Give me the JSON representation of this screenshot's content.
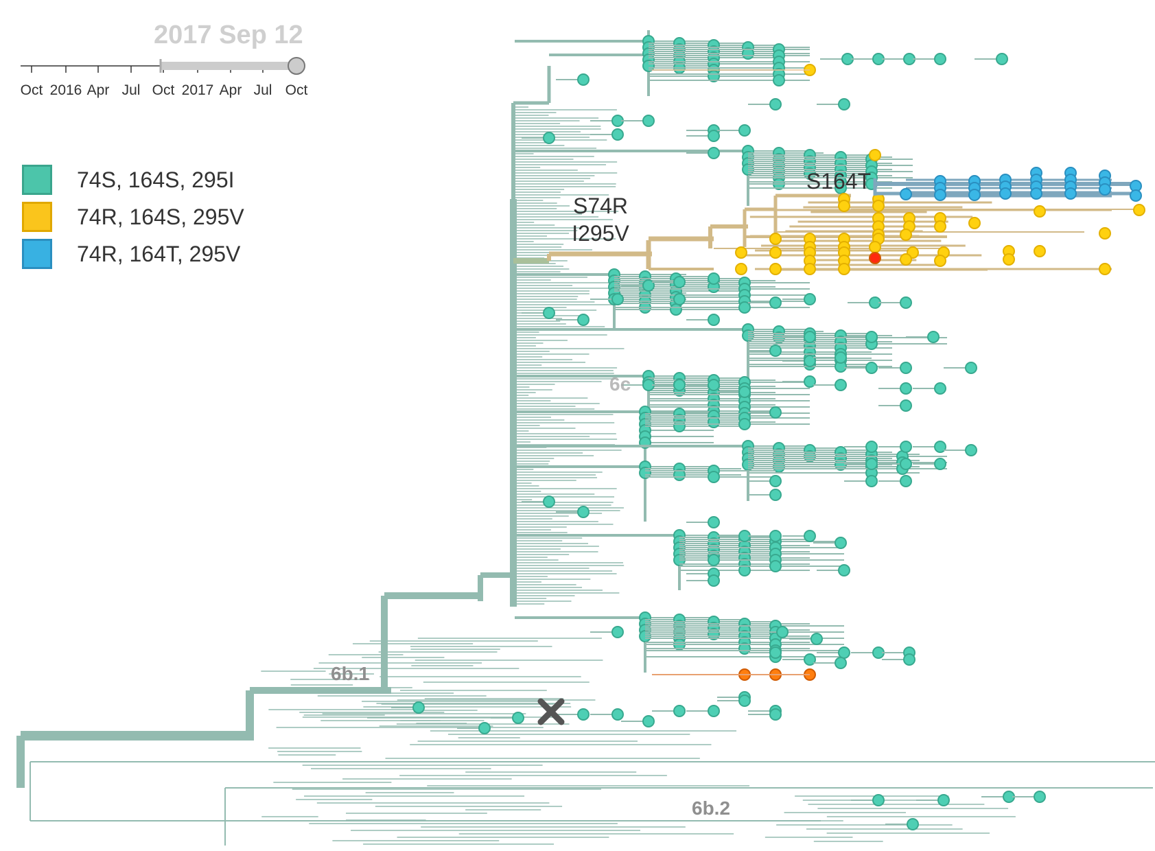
{
  "timeline": {
    "current_date": "2017 Sep 12",
    "ticks": [
      "Oct",
      "2016",
      "Apr",
      "Jul",
      "Oct",
      "2017",
      "Apr",
      "Jul",
      "Oct"
    ]
  },
  "legend": {
    "items": [
      {
        "label": "74S, 164S, 295I",
        "color": "#4cc5aa",
        "border": "#3aa58d"
      },
      {
        "label": "74R, 164S, 295V",
        "color": "#fac51c",
        "border": "#e0a800"
      },
      {
        "label": "74R, 164T, 295V",
        "color": "#38b1e2",
        "border": "#2a8fc0"
      }
    ]
  },
  "annotations": {
    "mutation_a": "S74R",
    "mutation_b": "I295V",
    "mutation_c": "S164T"
  },
  "clades": {
    "c1": "6b.1",
    "c2": "6b.2",
    "c3": "6c"
  },
  "colors": {
    "branch_teal": "#93bbb0",
    "branch_tan": "#d2ba88",
    "branch_blue": "#7fa7bd",
    "tip_teal": "#4ecfb4",
    "tip_yellow": "#ffd10f",
    "tip_blue": "#3ab7e6",
    "tip_orange": "#ff7e0f",
    "tip_red": "#ff2a0f",
    "marker": "#555555"
  }
}
